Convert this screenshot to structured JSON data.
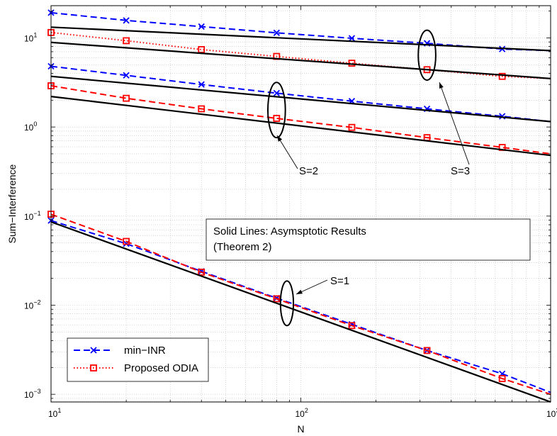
{
  "chart_data": {
    "type": "line",
    "xlabel": "N",
    "ylabel": "Sum−Interference",
    "x_scale": "log",
    "y_scale": "log",
    "xlim": [
      10,
      1000
    ],
    "ylim": [
      0.00082,
      23
    ],
    "grid": true,
    "x_ticks": [
      {
        "value": 10,
        "base": "10",
        "exp": "1"
      },
      {
        "value": 100,
        "base": "10",
        "exp": "2"
      },
      {
        "value": 1000,
        "base": "10",
        "exp": "3"
      }
    ],
    "y_ticks": [
      {
        "value": 0.001,
        "base": "10",
        "exp": "−3"
      },
      {
        "value": 0.01,
        "base": "10",
        "exp": "−2"
      },
      {
        "value": 0.1,
        "base": "10",
        "exp": "−1"
      },
      {
        "value": 1,
        "base": "10",
        "exp": "0"
      },
      {
        "value": 10,
        "base": "10",
        "exp": "1"
      }
    ],
    "legend": {
      "placement": "bottom-left",
      "entries": [
        {
          "label": "min−INR",
          "color": "#0000ff",
          "marker": "x",
          "dash": "dashed"
        },
        {
          "label": "Proposed ODIA",
          "color": "#ff0000",
          "marker": "square",
          "dash": "dotted"
        }
      ]
    },
    "text_box": {
      "line1": "Solid Lines: Asymsptotic Results",
      "line2": "(Theorem 2)"
    },
    "annotations": [
      "S=1",
      "S=2",
      "S=3"
    ],
    "series": [
      {
        "kind": "min-INR",
        "color": "#0000ff",
        "dash": "dashed",
        "marker": "x",
        "x": [
          10,
          20,
          40,
          80,
          160,
          320,
          640,
          1000
        ],
        "y": [
          19.2,
          15.7,
          13.4,
          11.4,
          9.9,
          8.7,
          7.5,
          7.2
        ]
      },
      {
        "kind": "asymptotic",
        "color": "#000000",
        "dash": "solid",
        "marker": "none",
        "x": [
          10,
          1000
        ],
        "y": [
          13.2,
          7.2
        ]
      },
      {
        "kind": "ODIA",
        "color": "#ff0000",
        "dash": "dotted",
        "marker": "square",
        "x": [
          10,
          20,
          40,
          80,
          160,
          320,
          640,
          1000
        ],
        "y": [
          11.5,
          9.3,
          7.4,
          6.2,
          5.2,
          4.4,
          3.7,
          3.5
        ]
      },
      {
        "kind": "asymptotic",
        "color": "#000000",
        "dash": "solid",
        "marker": "none",
        "x": [
          10,
          1000
        ],
        "y": [
          8.9,
          3.5
        ]
      },
      {
        "kind": "min-INR",
        "color": "#0000ff",
        "dash": "dashed",
        "marker": "x",
        "x": [
          10,
          20,
          40,
          80,
          160,
          320,
          640,
          1000
        ],
        "y": [
          4.8,
          3.8,
          3.0,
          2.4,
          1.95,
          1.6,
          1.32,
          1.15
        ]
      },
      {
        "kind": "asymptotic",
        "color": "#000000",
        "dash": "solid",
        "marker": "none",
        "x": [
          10,
          1000
        ],
        "y": [
          3.7,
          1.15
        ]
      },
      {
        "kind": "ODIA",
        "color": "#ff0000",
        "dash": "dashed",
        "marker": "square",
        "x": [
          10,
          20,
          40,
          80,
          160,
          320,
          640,
          1000
        ],
        "y": [
          2.9,
          2.1,
          1.6,
          1.25,
          0.99,
          0.76,
          0.59,
          0.5
        ]
      },
      {
        "kind": "asymptotic",
        "color": "#000000",
        "dash": "solid",
        "marker": "none",
        "x": [
          10,
          1000
        ],
        "y": [
          2.2,
          0.48
        ]
      },
      {
        "kind": "min-INR",
        "color": "#0000ff",
        "dash": "dashed",
        "marker": "x",
        "x": [
          10,
          20,
          40,
          80,
          160,
          320,
          640,
          1000
        ],
        "y": [
          0.089,
          0.049,
          0.024,
          0.012,
          0.0061,
          0.0031,
          0.0017,
          0.00105
        ]
      },
      {
        "kind": "ODIA",
        "color": "#ff0000",
        "dash": "dashed",
        "marker": "square",
        "x": [
          10,
          20,
          40,
          80,
          160,
          320,
          640,
          1000
        ],
        "y": [
          0.105,
          0.052,
          0.0235,
          0.0118,
          0.0059,
          0.0031,
          0.0015,
          0.001
        ]
      },
      {
        "kind": "asymptotic",
        "color": "#000000",
        "dash": "solid",
        "marker": "none",
        "x": [
          10,
          1000
        ],
        "y": [
          0.086,
          0.00082
        ]
      }
    ],
    "ellipses": [
      {
        "cx": 88,
        "cy": 0.0105,
        "rx_dec": 0.026,
        "ry_dec": 0.25
      },
      {
        "cx": 80,
        "cy": 1.55,
        "rx_dec": 0.035,
        "ry_dec": 0.31
      },
      {
        "cx": 320,
        "cy": 6.4,
        "rx_dec": 0.035,
        "ry_dec": 0.28
      }
    ]
  }
}
